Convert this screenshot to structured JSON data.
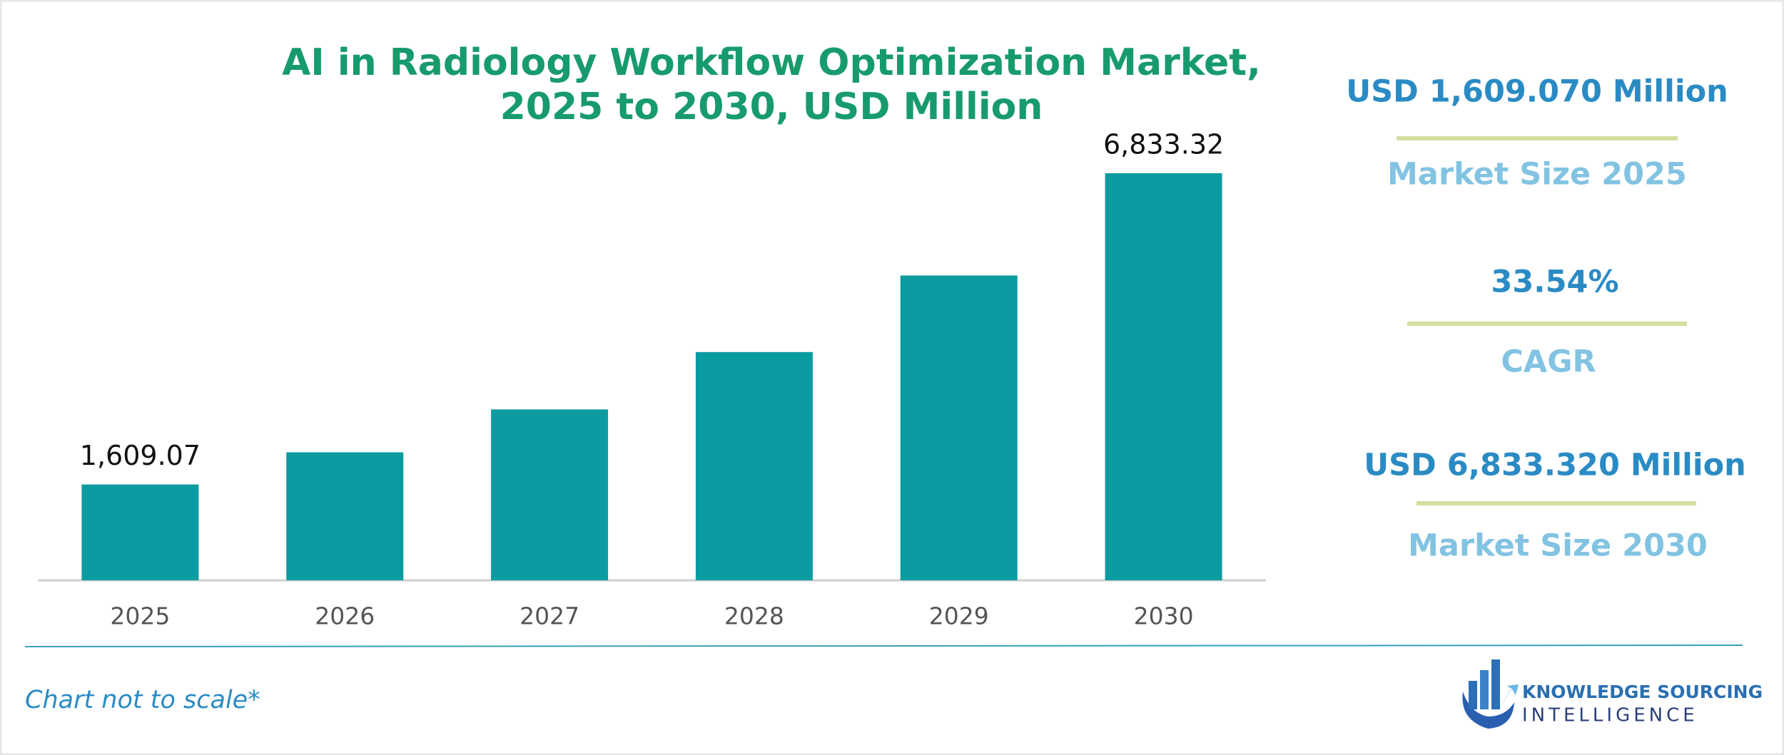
{
  "chart_data": {
    "type": "bar",
    "title": [
      "AI in Radiology Workflow Optimization Market,",
      "2025 to 2030, USD Million"
    ],
    "categories": [
      "2025",
      "2026",
      "2027",
      "2028",
      "2029",
      "2030"
    ],
    "values": [
      1609.07,
      2149,
      2869,
      3832,
      5117,
      6833.32
    ],
    "value_labels": [
      "1,609.07",
      null,
      null,
      null,
      null,
      "6,833.32"
    ],
    "color": "#0a9ca0"
  },
  "highlights": [
    {
      "value": "USD 1,609.070 Million",
      "label": "Market Size 2025"
    },
    {
      "value": "33.54%",
      "label": "CAGR"
    },
    {
      "value": "USD 6,833.320 Million",
      "label": "Market Size 2030"
    }
  ],
  "footer": {
    "note": "Chart not to scale*",
    "brand": [
      "KNOWLEDGE SOURCING",
      "INTELLIGENCE"
    ]
  }
}
